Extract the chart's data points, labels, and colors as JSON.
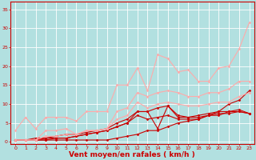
{
  "title": "",
  "xlabel": "Vent moyen/en rafales ( km/h )",
  "ylabel": "",
  "bg_color": "#b2e0e0",
  "grid_color": "#c8e8e8",
  "x_ticks": [
    0,
    1,
    2,
    3,
    4,
    5,
    6,
    7,
    8,
    9,
    10,
    11,
    12,
    13,
    14,
    15,
    16,
    17,
    18,
    19,
    20,
    21,
    22,
    23
  ],
  "y_ticks": [
    0,
    5,
    10,
    15,
    20,
    25,
    30,
    35
  ],
  "xlim": [
    -0.5,
    23.5
  ],
  "ylim": [
    -0.5,
    37
  ],
  "series": [
    {
      "x": [
        0,
        1,
        2,
        3,
        4,
        5,
        6,
        7,
        8,
        9,
        10,
        11,
        12,
        13,
        14,
        15,
        16,
        17,
        18,
        19,
        20,
        21,
        22,
        23
      ],
      "y": [
        0.5,
        0.5,
        0.5,
        0.5,
        0.5,
        0.5,
        0.5,
        0.5,
        0.5,
        0.5,
        1,
        1.5,
        2,
        3,
        3,
        4,
        5,
        5.5,
        6,
        7,
        8,
        10,
        11,
        13.5
      ],
      "color": "#cc0000",
      "lw": 0.8,
      "marker": "D",
      "ms": 1.5
    },
    {
      "x": [
        0,
        1,
        2,
        3,
        4,
        5,
        6,
        7,
        8,
        9,
        10,
        11,
        12,
        13,
        14,
        15,
        16,
        17,
        18,
        19,
        20,
        21,
        22,
        23
      ],
      "y": [
        0.5,
        0.5,
        0.5,
        0.5,
        1,
        1,
        1.5,
        2,
        2.5,
        3,
        4,
        5,
        8,
        8,
        9,
        9.5,
        6.5,
        6.5,
        7,
        7.5,
        8,
        8,
        8,
        7.5
      ],
      "color": "#cc0000",
      "lw": 0.8,
      "marker": "D",
      "ms": 1.5
    },
    {
      "x": [
        0,
        1,
        2,
        3,
        4,
        5,
        6,
        7,
        8,
        9,
        10,
        11,
        12,
        13,
        14,
        15,
        16,
        17,
        18,
        19,
        20,
        21,
        22,
        23
      ],
      "y": [
        0.5,
        0.5,
        1,
        1,
        1.5,
        2,
        2,
        2.5,
        3,
        3.5,
        5,
        6,
        8,
        8,
        3.5,
        9.5,
        7,
        6.5,
        6.5,
        7,
        7,
        8,
        8.5,
        7.5
      ],
      "color": "#cc0000",
      "lw": 0.8,
      "marker": "D",
      "ms": 1.5
    },
    {
      "x": [
        0,
        1,
        2,
        3,
        4,
        5,
        6,
        7,
        8,
        9,
        10,
        11,
        12,
        13,
        14,
        15,
        16,
        17,
        18,
        19,
        20,
        21,
        22,
        23
      ],
      "y": [
        0.5,
        0.5,
        0.5,
        1,
        1,
        1,
        1.5,
        2,
        2.5,
        3,
        4,
        5,
        7,
        6,
        6.5,
        7,
        6,
        6,
        6,
        7,
        7.5,
        7.5,
        8,
        7.5
      ],
      "color": "#cc0000",
      "lw": 0.8,
      "marker": "D",
      "ms": 1.5
    },
    {
      "x": [
        0,
        1,
        2,
        3,
        4,
        5,
        6,
        7,
        8,
        9,
        10,
        11,
        12,
        13,
        14,
        15,
        16,
        17,
        18,
        19,
        20,
        21,
        22,
        23
      ],
      "y": [
        3,
        6.5,
        3.5,
        6.5,
        6.5,
        6.5,
        5.5,
        8,
        8,
        8,
        15,
        15,
        19.5,
        13.5,
        23,
        22,
        18.5,
        19,
        16,
        16,
        19.5,
        20,
        24.5,
        31.5
      ],
      "color": "#ffaaaa",
      "lw": 0.8,
      "marker": "D",
      "ms": 1.5
    },
    {
      "x": [
        0,
        1,
        2,
        3,
        4,
        5,
        6,
        7,
        8,
        9,
        10,
        11,
        12,
        13,
        14,
        15,
        16,
        17,
        18,
        19,
        20,
        21,
        22,
        23
      ],
      "y": [
        0.5,
        0.5,
        0.5,
        3,
        3,
        3.5,
        2,
        3,
        3,
        3.5,
        8,
        9,
        13,
        12,
        13,
        13.5,
        13,
        12,
        12,
        13,
        13,
        14,
        16,
        16
      ],
      "color": "#ffaaaa",
      "lw": 0.8,
      "marker": "D",
      "ms": 1.5
    },
    {
      "x": [
        0,
        1,
        2,
        3,
        4,
        5,
        6,
        7,
        8,
        9,
        10,
        11,
        12,
        13,
        14,
        15,
        16,
        17,
        18,
        19,
        20,
        21,
        22,
        23
      ],
      "y": [
        0.5,
        0.5,
        0.5,
        1.5,
        1.5,
        2,
        2,
        3,
        3,
        3.5,
        6,
        7,
        10.5,
        9,
        10,
        10.5,
        10,
        9.5,
        9.5,
        10,
        10.5,
        10.5,
        12,
        13
      ],
      "color": "#ffaaaa",
      "lw": 0.8,
      "marker": "D",
      "ms": 1.5
    }
  ],
  "tick_color": "#cc0000",
  "tick_fontsize": 4.5,
  "xlabel_fontsize": 6.5,
  "xlabel_color": "#cc0000",
  "xlabel_bold": true,
  "spine_color": "#cc0000"
}
